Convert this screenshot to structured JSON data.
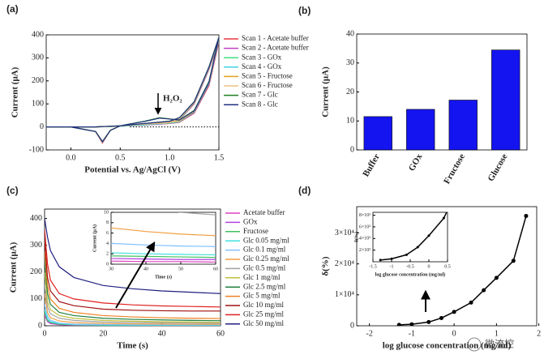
{
  "chart_data": [
    {
      "type": "line",
      "panel_label": "(a)",
      "xlabel": "Potential vs. Ag/AgCl (V)",
      "ylabel": "Current (μA)",
      "annotation": "H₂O₂",
      "xlim": [
        -0.25,
        1.5
      ],
      "ylim": [
        -100,
        400
      ],
      "xticks": [
        {
          "value": 0,
          "label": "0.0"
        },
        0.5,
        {
          "value": 1,
          "label": "1.0"
        },
        1.5
      ],
      "yticks": [
        -100,
        0,
        100,
        200,
        300,
        400
      ],
      "legend": "outside-right",
      "x": [
        -0.25,
        0,
        0.25,
        0.5,
        0.75,
        0.9,
        1.0,
        1.1,
        1.25,
        1.4,
        1.5,
        1.4,
        1.25,
        1.1,
        1.0,
        0.75,
        0.5,
        0.4,
        0.32,
        0.25,
        0,
        -0.25
      ],
      "series": [
        {
          "name": "Scan 1 - Acetate buffer",
          "color": "#e8383d",
          "values": [
            0,
            0,
            0,
            3,
            8,
            12,
            15,
            20,
            60,
            180,
            370,
            250,
            100,
            30,
            15,
            10,
            5,
            -15,
            -70,
            -20,
            0,
            0
          ]
        },
        {
          "name": "Scan 2 - Acetate buffer",
          "color": "#c040c0",
          "values": [
            0,
            0,
            0,
            3,
            8,
            12,
            15,
            21,
            62,
            185,
            375,
            252,
            102,
            31,
            15,
            10,
            5,
            -15,
            -68,
            -20,
            0,
            0
          ]
        },
        {
          "name": "Scan 3 - GOx",
          "color": "#40e080",
          "values": [
            0,
            0,
            0,
            3,
            9,
            14,
            16,
            22,
            65,
            190,
            380,
            255,
            104,
            32,
            16,
            10,
            5,
            -15,
            -66,
            -20,
            0,
            0
          ]
        },
        {
          "name": "Scan 4 - GOx",
          "color": "#40d0e0",
          "values": [
            0,
            0,
            0,
            3,
            9,
            14,
            17,
            23,
            66,
            192,
            382,
            256,
            105,
            33,
            16,
            10,
            5,
            -15,
            -66,
            -20,
            0,
            0
          ]
        },
        {
          "name": "Scan 5 - Fructose",
          "color": "#e0a020",
          "values": [
            0,
            0,
            0,
            4,
            12,
            18,
            20,
            25,
            68,
            195,
            385,
            258,
            106,
            35,
            18,
            12,
            5,
            -15,
            -65,
            -20,
            0,
            0
          ]
        },
        {
          "name": "Scan 6 - Fructose",
          "color": "#f0c080",
          "values": [
            0,
            0,
            0,
            4,
            12,
            19,
            21,
            26,
            69,
            196,
            386,
            258,
            107,
            36,
            18,
            12,
            5,
            -15,
            -65,
            -20,
            0,
            0
          ]
        },
        {
          "name": "Scan 7 - Glc",
          "color": "#208020",
          "values": [
            0,
            0,
            0,
            5,
            25,
            40,
            35,
            30,
            72,
            198,
            390,
            262,
            110,
            40,
            25,
            15,
            5,
            -15,
            -63,
            -20,
            0,
            0
          ]
        },
        {
          "name": "Scan 8 - Glc",
          "color": "#203080",
          "values": [
            0,
            0,
            0,
            5,
            24,
            38,
            34,
            30,
            70,
            195,
            388,
            260,
            109,
            40,
            24,
            15,
            5,
            -15,
            -64,
            -20,
            0,
            0
          ]
        }
      ]
    },
    {
      "type": "bar",
      "panel_label": "(b)",
      "ylabel": "Current (μA)",
      "color": "#1414f0",
      "categories": [
        "Buffer",
        "GOx",
        "Fructose",
        "Glucose"
      ],
      "values": [
        11.5,
        14,
        17.2,
        34.5
      ],
      "ylim": [
        0,
        40
      ],
      "yticks": [
        0,
        10,
        20,
        30,
        40
      ]
    },
    {
      "type": "line",
      "panel_label": "(c)",
      "xlabel": "Time (s)",
      "ylabel": "Current (μA)",
      "xlim": [
        0,
        60
      ],
      "ylim": [
        0,
        435
      ],
      "xticks": [
        0,
        20,
        40,
        60
      ],
      "yticks": [
        0,
        100,
        200,
        300,
        400
      ],
      "legend": "outside-right",
      "x": [
        0,
        1,
        2,
        5,
        10,
        20,
        30,
        40,
        50,
        60
      ],
      "inset": {
        "xlabel": "Time (s)",
        "ylabel": "Current (μA)",
        "xlim": [
          30,
          60
        ],
        "ylim": [
          0,
          10
        ],
        "xticks": [
          30,
          40,
          50,
          60
        ],
        "yticks": [
          0,
          2,
          4,
          6,
          8,
          10
        ]
      },
      "series": [
        {
          "name": "Acetate buffer",
          "color": "#e040c0",
          "values": [
            40,
            15,
            8,
            4,
            2,
            1,
            0.6,
            0.5,
            0.5,
            0.4
          ]
        },
        {
          "name": "GOx",
          "color": "#b040e0",
          "values": [
            45,
            18,
            10,
            5,
            3,
            1.5,
            1.1,
            1,
            0.9,
            0.9
          ]
        },
        {
          "name": "Fructose",
          "color": "#40c060",
          "values": [
            50,
            20,
            12,
            6,
            3.5,
            2,
            1.6,
            1.5,
            1.4,
            1.3
          ]
        },
        {
          "name": "Glc 0.05 mg/ml",
          "color": "#40e0e0",
          "values": [
            60,
            25,
            15,
            8,
            5,
            3,
            2.2,
            2,
            1.9,
            1.8
          ]
        },
        {
          "name": "Glc 0.1 mg/ml",
          "color": "#80c0ff",
          "values": [
            80,
            35,
            20,
            10,
            6,
            4.5,
            4,
            3.7,
            3.5,
            3.4
          ]
        },
        {
          "name": "Glc 0.25 mg/ml",
          "color": "#f0a040",
          "values": [
            120,
            50,
            30,
            18,
            12,
            8.5,
            7,
            6.3,
            5.8,
            5.5
          ]
        },
        {
          "name": "Glc 0.5 mg/ml",
          "color": "#a0a0a0",
          "values": [
            150,
            70,
            45,
            28,
            20,
            14,
            12,
            11,
            10,
            9.5
          ]
        },
        {
          "name": "Glc 1 mg/ml",
          "color": "#c0c040",
          "values": [
            200,
            90,
            60,
            38,
            28,
            20,
            17,
            15,
            14,
            13
          ]
        },
        {
          "name": "Glc 2.5 mg/ml",
          "color": "#208040",
          "values": [
            250,
            120,
            80,
            50,
            38,
            28,
            24,
            22,
            20,
            19
          ]
        },
        {
          "name": "Glc 5 mg/ml",
          "color": "#f08020",
          "values": [
            280,
            150,
            100,
            65,
            50,
            38,
            33,
            30,
            28,
            27
          ]
        },
        {
          "name": "Glc 10 mg/ml",
          "color": "#a01010",
          "values": [
            320,
            180,
            130,
            90,
            75,
            62,
            58,
            56,
            55,
            55
          ]
        },
        {
          "name": "Glc 25 mg/ml",
          "color": "#e02020",
          "values": [
            360,
            230,
            170,
            120,
            100,
            85,
            78,
            74,
            72,
            70
          ]
        },
        {
          "name": "Glc 50 mg/ml",
          "color": "#202080",
          "values": [
            400,
            330,
            280,
            220,
            180,
            150,
            138,
            130,
            125,
            120
          ]
        }
      ]
    },
    {
      "type": "line",
      "panel_label": "(d)",
      "xlabel": "log glucose concentration (mg/ml)",
      "ylabel": "δ(%)",
      "xlim": [
        -2.3,
        1.95
      ],
      "ylim": [
        0,
        38500
      ],
      "xticks": [
        -2,
        -1,
        0,
        1,
        2
      ],
      "yticks": [
        0,
        {
          "value": 10000,
          "label": "1×10⁴"
        },
        {
          "value": 20000,
          "label": "2×10⁴"
        },
        {
          "value": 30000,
          "label": "3×10⁴"
        }
      ],
      "x": [
        -1.3,
        -1,
        -0.6,
        -0.3,
        0,
        0.4,
        0.7,
        1,
        1.4,
        1.7
      ],
      "series": [
        {
          "color": "#000000",
          "values": [
            300,
            500,
            1200,
            2500,
            4500,
            7500,
            11500,
            15500,
            21000,
            35500
          ]
        }
      ],
      "inset": {
        "xlabel": "log glucose concentration (mg/ml)",
        "ylabel": "δ(%)",
        "xlim": [
          -1.5,
          0.5
        ],
        "ylim": [
          0,
          8500
        ],
        "xticks": [
          -1.5,
          -1,
          -0.5,
          0,
          0.5
        ],
        "yticks": [
          {
            "value": 2000,
            "label": "2×10³"
          },
          {
            "value": 4000,
            "label": "4×10³"
          },
          {
            "value": 6000,
            "label": "6×10³"
          },
          {
            "value": 8000,
            "label": "8×10³"
          }
        ]
      }
    }
  ],
  "watermark": "微流控"
}
